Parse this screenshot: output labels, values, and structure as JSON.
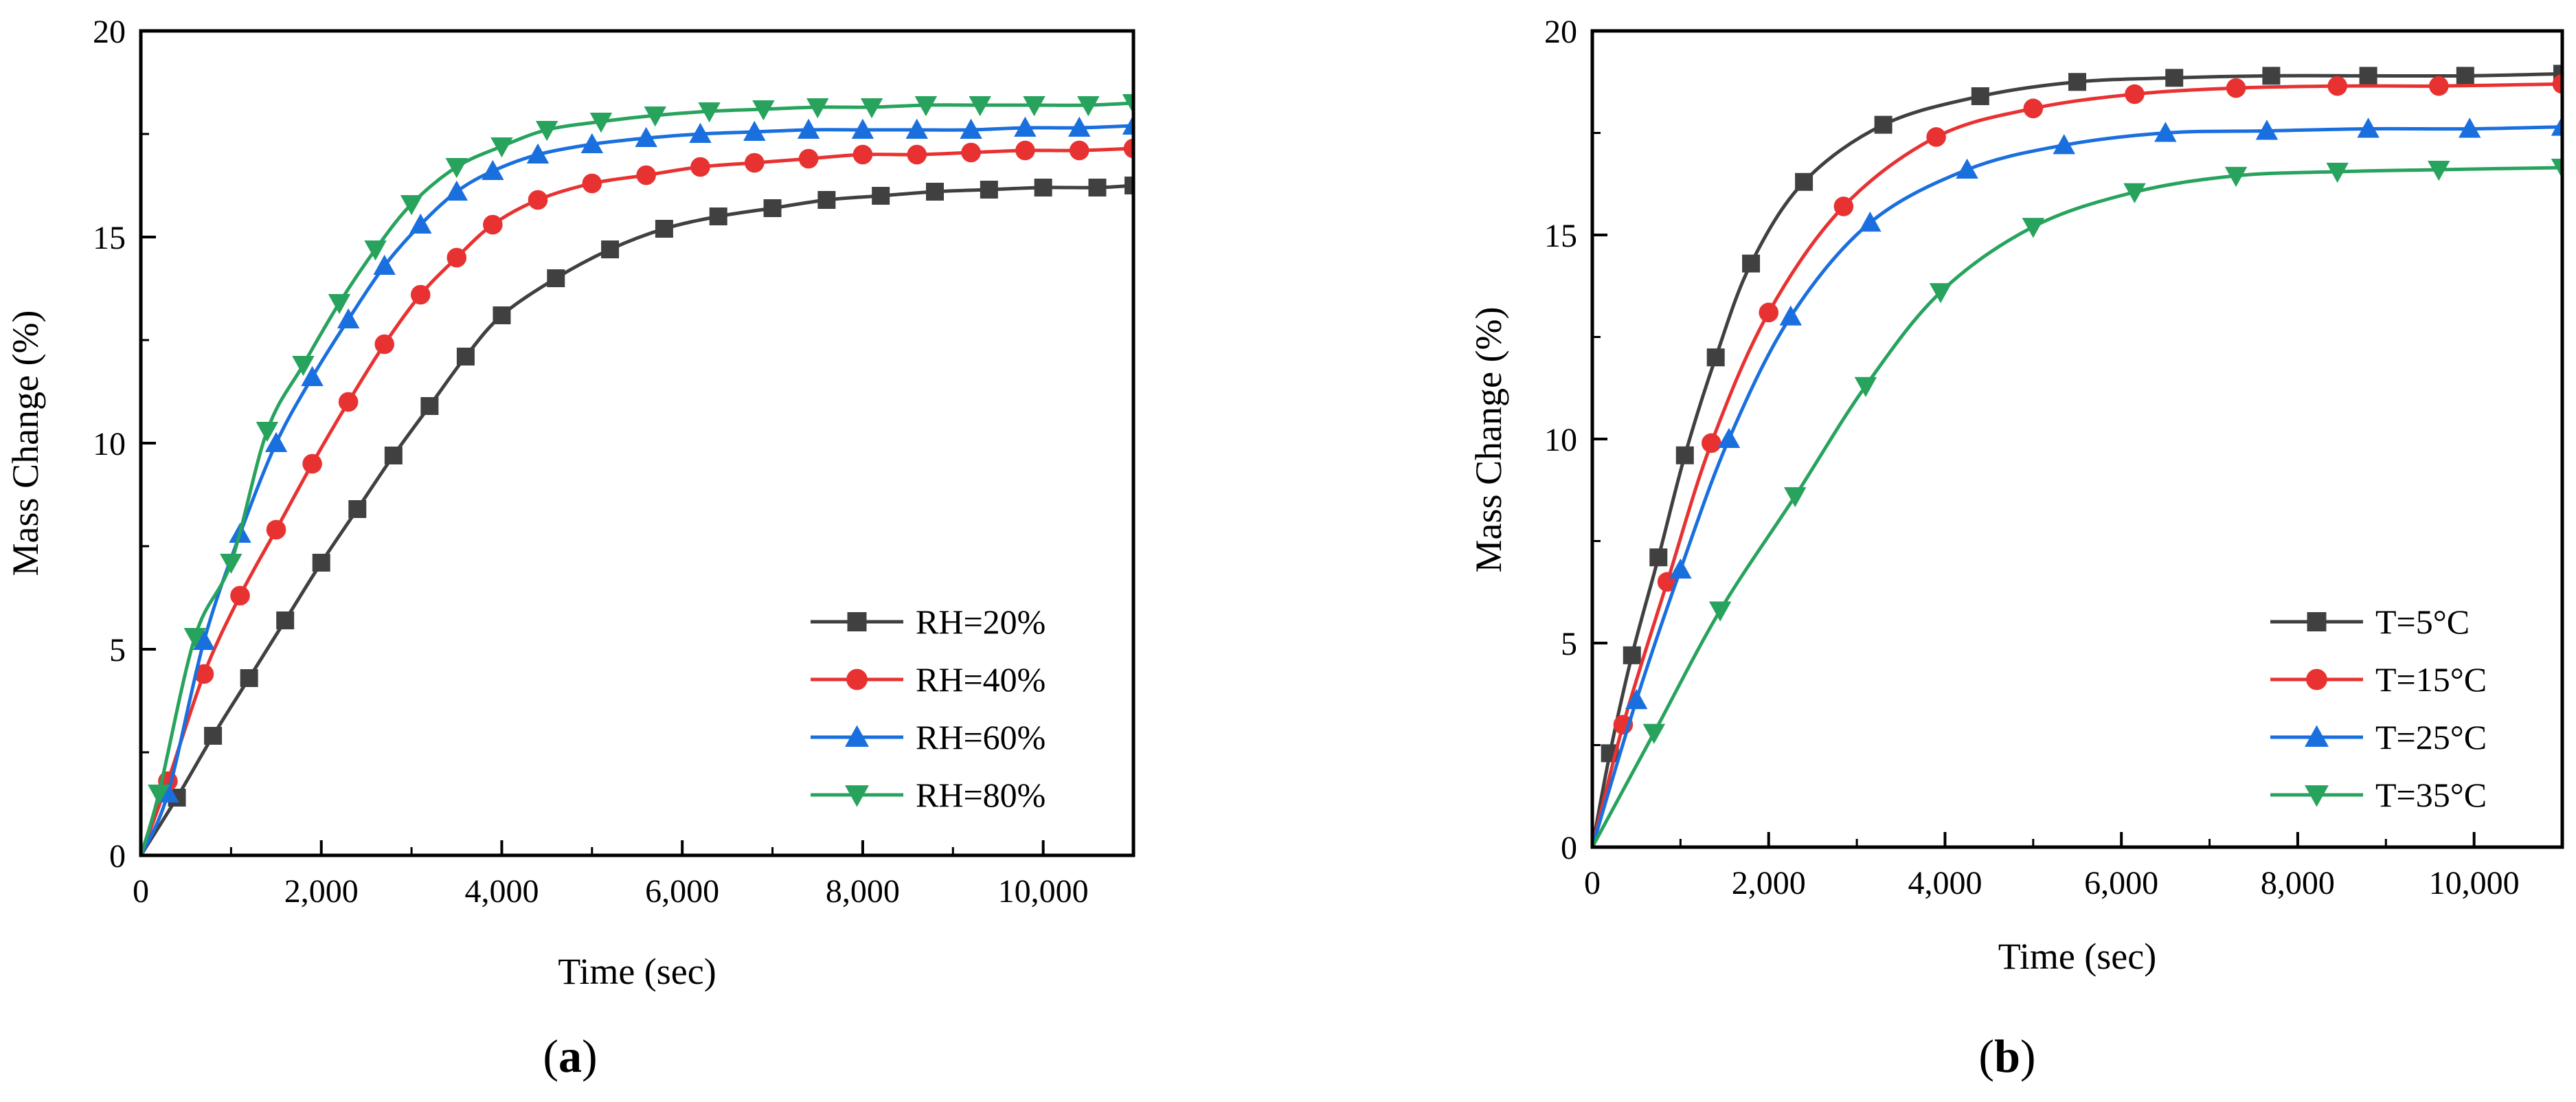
{
  "figure": {
    "panels": [
      "a",
      "b"
    ]
  },
  "chart_data": [
    {
      "type": "line",
      "panel_label": "a",
      "xlabel": "Time (sec)",
      "ylabel": "Mass Change (%)",
      "xlim": [
        0,
        11000
      ],
      "ylim": [
        0,
        20
      ],
      "xticks": [
        0,
        2000,
        4000,
        6000,
        8000,
        10000
      ],
      "xtick_labels": [
        "0",
        "2,000",
        "4,000",
        "6,000",
        "8,000",
        "10,000"
      ],
      "yticks": [
        0,
        5,
        10,
        15,
        20
      ],
      "ytick_labels": [
        "0",
        "5",
        "10",
        "15",
        "20"
      ],
      "grid": false,
      "legend_position": "bottom-right",
      "series": [
        {
          "name": "RH=20%",
          "color": "#404040",
          "marker": "square",
          "x": [
            0,
            400,
            800,
            1200,
            1600,
            2000,
            2400,
            2800,
            3200,
            3600,
            4000,
            4600,
            5200,
            5800,
            6400,
            7000,
            7600,
            8200,
            8800,
            9400,
            10000,
            10600,
            11000
          ],
          "values": [
            0,
            1.4,
            2.9,
            4.3,
            5.7,
            7.1,
            8.4,
            9.7,
            10.9,
            12.1,
            13.1,
            14.0,
            14.7,
            15.2,
            15.5,
            15.7,
            15.9,
            16.0,
            16.1,
            16.15,
            16.2,
            16.2,
            16.25
          ]
        },
        {
          "name": "RH=40%",
          "color": "#e83232",
          "marker": "circle",
          "x": [
            0,
            300,
            700,
            1100,
            1500,
            1900,
            2300,
            2700,
            3100,
            3500,
            3900,
            4400,
            5000,
            5600,
            6200,
            6800,
            7400,
            8000,
            8600,
            9200,
            9800,
            10400,
            11000
          ],
          "values": [
            0,
            1.8,
            4.4,
            6.3,
            7.9,
            9.5,
            11.0,
            12.4,
            13.6,
            14.5,
            15.3,
            15.9,
            16.3,
            16.5,
            16.7,
            16.8,
            16.9,
            17.0,
            17.0,
            17.05,
            17.1,
            17.1,
            17.15
          ]
        },
        {
          "name": "RH=60%",
          "color": "#1a6fdf",
          "marker": "triangle-up",
          "x": [
            0,
            300,
            700,
            1100,
            1500,
            1900,
            2300,
            2700,
            3100,
            3500,
            3900,
            4400,
            5000,
            5600,
            6200,
            6800,
            7400,
            8000,
            8600,
            9200,
            9800,
            10400,
            11000
          ],
          "values": [
            0,
            1.5,
            5.2,
            7.8,
            10.0,
            11.6,
            13.0,
            14.3,
            15.3,
            16.1,
            16.6,
            17.0,
            17.25,
            17.4,
            17.5,
            17.55,
            17.6,
            17.6,
            17.6,
            17.6,
            17.65,
            17.65,
            17.7
          ]
        },
        {
          "name": "RH=80%",
          "color": "#27a35d",
          "marker": "triangle-down",
          "x": [
            0,
            200,
            600,
            1000,
            1400,
            1800,
            2200,
            2600,
            3000,
            3500,
            4000,
            4500,
            5100,
            5700,
            6300,
            6900,
            7500,
            8100,
            8700,
            9300,
            9900,
            10500,
            11000
          ],
          "values": [
            0,
            1.5,
            5.3,
            7.1,
            10.3,
            11.9,
            13.4,
            14.7,
            15.8,
            16.7,
            17.2,
            17.6,
            17.8,
            17.95,
            18.05,
            18.1,
            18.15,
            18.15,
            18.2,
            18.2,
            18.2,
            18.2,
            18.25
          ]
        }
      ]
    },
    {
      "type": "line",
      "panel_label": "b",
      "xlabel": "Time (sec)",
      "ylabel": "Mass Change (%)",
      "xlim": [
        0,
        11000
      ],
      "ylim": [
        0,
        20
      ],
      "xticks": [
        0,
        2000,
        4000,
        6000,
        8000,
        10000
      ],
      "xtick_labels": [
        "0",
        "2,000",
        "4,000",
        "6,000",
        "8,000",
        "10,000"
      ],
      "yticks": [
        0,
        5,
        10,
        15,
        20
      ],
      "ytick_labels": [
        "0",
        "5",
        "10",
        "15",
        "20"
      ],
      "grid": false,
      "legend_position": "bottom-right",
      "series": [
        {
          "name": "T=5°C",
          "color": "#404040",
          "marker": "square",
          "x": [
            0,
            200,
            450,
            750,
            1050,
            1400,
            1800,
            2400,
            3300,
            4400,
            5500,
            6600,
            7700,
            8800,
            9900,
            11000
          ],
          "values": [
            0,
            2.3,
            4.7,
            7.1,
            9.6,
            12.0,
            14.3,
            16.3,
            17.7,
            18.4,
            18.75,
            18.85,
            18.9,
            18.9,
            18.9,
            18.95
          ]
        },
        {
          "name": "T=15°C",
          "color": "#e83232",
          "marker": "circle",
          "x": [
            0,
            350,
            850,
            1350,
            2000,
            2850,
            3900,
            5000,
            6150,
            7300,
            8450,
            9600,
            11000
          ],
          "values": [
            0,
            3.0,
            6.5,
            9.9,
            13.1,
            15.7,
            17.4,
            18.1,
            18.45,
            18.6,
            18.65,
            18.65,
            18.7
          ]
        },
        {
          "name": "T=25°C",
          "color": "#1a6fdf",
          "marker": "triangle-up",
          "x": [
            0,
            500,
            1000,
            1550,
            2250,
            3150,
            4250,
            5350,
            6500,
            7650,
            8800,
            9950,
            11000
          ],
          "values": [
            0,
            3.6,
            6.8,
            10.0,
            13.0,
            15.3,
            16.6,
            17.2,
            17.5,
            17.55,
            17.6,
            17.6,
            17.65
          ]
        },
        {
          "name": "T=35°C",
          "color": "#27a35d",
          "marker": "triangle-down",
          "x": [
            0,
            700,
            1450,
            2300,
            3100,
            3950,
            5000,
            6150,
            7300,
            8450,
            9600,
            11000
          ],
          "values": [
            0,
            2.8,
            5.8,
            8.6,
            11.3,
            13.6,
            15.2,
            16.05,
            16.45,
            16.55,
            16.6,
            16.65
          ]
        }
      ]
    }
  ]
}
